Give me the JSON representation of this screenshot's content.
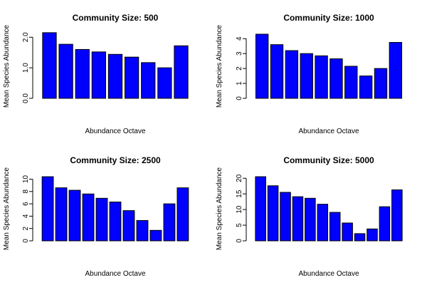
{
  "colors": {
    "bar_fill": "#0000ff",
    "bar_stroke": "#000000",
    "axis": "#000000"
  },
  "chart_data": [
    {
      "type": "bar",
      "title": "Community Size: 500",
      "xlabel": "Abundance Octave",
      "ylabel": "Mean Species Abundance",
      "ylim": [
        0,
        2.1
      ],
      "yticks": [
        0,
        1,
        2
      ],
      "ytick_labels": [
        "0.0",
        "1.0",
        "2.0"
      ],
      "values": [
        2.15,
        1.77,
        1.6,
        1.52,
        1.44,
        1.35,
        1.17,
        1.0,
        1.72
      ],
      "grid": false,
      "legend": "none"
    },
    {
      "type": "bar",
      "title": "Community Size: 1000",
      "xlabel": "Abundance Octave",
      "ylabel": "Mean Species Abundance",
      "ylim": [
        0,
        4.3
      ],
      "yticks": [
        0,
        1,
        2,
        3,
        4
      ],
      "ytick_labels": [
        "0",
        "1",
        "2",
        "3",
        "4"
      ],
      "values": [
        4.3,
        3.6,
        3.2,
        3.0,
        2.85,
        2.65,
        2.15,
        1.5,
        2.0,
        3.75
      ],
      "grid": false,
      "legend": "none"
    },
    {
      "type": "bar",
      "title": "Community Size: 2500",
      "xlabel": "Abundance Octave",
      "ylabel": "Mean Species Abundance",
      "ylim": [
        0,
        10.4
      ],
      "yticks": [
        0,
        2,
        4,
        6,
        8,
        10
      ],
      "ytick_labels": [
        "0",
        "2",
        "4",
        "6",
        "8",
        "10"
      ],
      "values": [
        10.4,
        8.6,
        8.2,
        7.6,
        6.9,
        6.3,
        4.9,
        3.3,
        1.7,
        6.0,
        8.6
      ],
      "grid": false,
      "legend": "none"
    },
    {
      "type": "bar",
      "title": "Community Size: 5000",
      "xlabel": "Abundance Octave",
      "ylabel": "Mean Species Abundance",
      "ylim": [
        0,
        20.5
      ],
      "yticks": [
        0,
        5,
        10,
        15,
        20
      ],
      "ytick_labels": [
        "0",
        "5",
        "10",
        "15",
        "20"
      ],
      "values": [
        20.5,
        17.6,
        15.5,
        14.1,
        13.6,
        11.7,
        9.1,
        5.7,
        2.3,
        3.8,
        10.9,
        16.3
      ],
      "grid": false,
      "legend": "none"
    }
  ]
}
